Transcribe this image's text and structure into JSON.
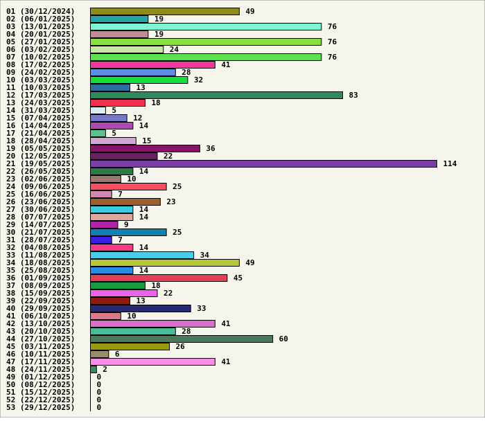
{
  "chart_data": {
    "type": "bar",
    "orientation": "horizontal",
    "title": "",
    "xlabel": "",
    "ylabel": "",
    "grid": false,
    "legend": "none",
    "background": "#f5f5eb",
    "xlim": [
      0,
      120
    ],
    "categories": [
      "01 (30/12/2024)",
      "02 (06/01/2025)",
      "03 (13/01/2025)",
      "04 (20/01/2025)",
      "05 (27/01/2025)",
      "06 (03/02/2025)",
      "07 (10/02/2025)",
      "08 (17/02/2025)",
      "09 (24/02/2025)",
      "10 (03/03/2025)",
      "11 (10/03/2025)",
      "12 (17/03/2025)",
      "13 (24/03/2025)",
      "14 (31/03/2025)",
      "15 (07/04/2025)",
      "16 (14/04/2025)",
      "17 (21/04/2025)",
      "18 (28/04/2025)",
      "19 (05/05/2025)",
      "20 (12/05/2025)",
      "21 (19/05/2025)",
      "22 (26/05/2025)",
      "23 (02/06/2025)",
      "24 (09/06/2025)",
      "25 (16/06/2025)",
      "26 (23/06/2025)",
      "27 (30/06/2025)",
      "28 (07/07/2025)",
      "29 (14/07/2025)",
      "30 (21/07/2025)",
      "31 (28/07/2025)",
      "32 (04/08/2025)",
      "33 (11/08/2025)",
      "34 (18/08/2025)",
      "35 (25/08/2025)",
      "36 (01/09/2025)",
      "37 (08/09/2025)",
      "38 (15/09/2025)",
      "39 (22/09/2025)",
      "40 (29/09/2025)",
      "41 (06/10/2025)",
      "42 (13/10/2025)",
      "43 (20/10/2025)",
      "44 (27/10/2025)",
      "45 (03/11/2025)",
      "46 (10/11/2025)",
      "47 (17/11/2025)",
      "48 (24/11/2025)",
      "49 (01/12/2025)",
      "50 (08/12/2025)",
      "51 (15/12/2025)",
      "52 (22/12/2025)",
      "53 (29/12/2025)"
    ],
    "values": [
      49,
      19,
      76,
      19,
      76,
      24,
      76,
      41,
      28,
      32,
      13,
      83,
      18,
      5,
      12,
      14,
      5,
      15,
      36,
      22,
      114,
      14,
      10,
      25,
      7,
      23,
      14,
      14,
      9,
      25,
      7,
      14,
      34,
      49,
      14,
      45,
      18,
      22,
      13,
      33,
      10,
      41,
      28,
      60,
      26,
      6,
      41,
      2,
      0,
      0,
      0,
      0,
      0
    ],
    "colors": [
      "#8f8a1c",
      "#23a3a3",
      "#7ff5d5",
      "#c28a92",
      "#8ae042",
      "#c8e6a6",
      "#5fe052",
      "#f0389a",
      "#5e8ce0",
      "#14e03a",
      "#2c6fa0",
      "#2d8a5a",
      "#f0304e",
      "#d8eef0",
      "#7878c8",
      "#b04ab0",
      "#5fbf8f",
      "#cfa8d6",
      "#861468",
      "#6a1f66",
      "#7a3ea6",
      "#2e7a44",
      "#967a6e",
      "#f74e5e",
      "#d08ab2",
      "#9e5f2a",
      "#3ccce0",
      "#dea89e",
      "#b024a8",
      "#1080b2",
      "#3a1ee6",
      "#f43a88",
      "#48cce8",
      "#b6c83a",
      "#2a8ce0",
      "#e24056",
      "#1a9a3e",
      "#ea64ea",
      "#8a1a12",
      "#262878",
      "#d87a8a",
      "#d670c8",
      "#4cbc96",
      "#4a7a5c",
      "#9a9a12",
      "#9c8a6a",
      "#f88ee8",
      "#3a8a5e",
      "#888888",
      "#888888",
      "#888888",
      "#888888",
      "#888888"
    ]
  }
}
